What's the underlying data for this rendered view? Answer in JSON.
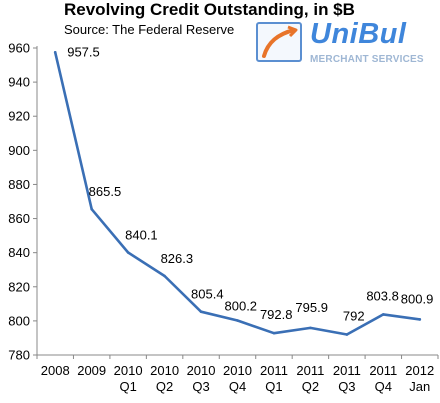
{
  "title": "Revolving Credit Outstanding, in $B",
  "subtitle": "Source: The Federal Reserve",
  "logo": {
    "name": "UniBul",
    "tagline": "MERCHANT SERVICES",
    "colors": {
      "primary": "#3f86db",
      "secondary": "#9fb7d4",
      "swoosh": "#e8742a"
    }
  },
  "chart_data": {
    "type": "line",
    "title": "Revolving Credit Outstanding, in $B",
    "subtitle": "Source: The Federal Reserve",
    "categories": [
      [
        "2008"
      ],
      [
        "2009"
      ],
      [
        "2010",
        "Q1"
      ],
      [
        "2010",
        "Q2"
      ],
      [
        "2010",
        "Q3"
      ],
      [
        "2010",
        "Q4"
      ],
      [
        "2011",
        "Q1"
      ],
      [
        "2011",
        "Q2"
      ],
      [
        "2011",
        "Q3"
      ],
      [
        "2011",
        "Q4"
      ],
      [
        "2012",
        "Jan"
      ]
    ],
    "series": [
      {
        "values": [
          957.5,
          865.5,
          840.1,
          826.3,
          805.4,
          800.2,
          792.8,
          795.9,
          792,
          803.8,
          800.9
        ],
        "labels": [
          "957.5",
          "865.5",
          "840.1",
          "826.3",
          "805.4",
          "800.2",
          "792.8",
          "795.9",
          "792",
          "803.8",
          "800.9"
        ],
        "color": "#3a6fb5"
      }
    ],
    "ylim": [
      780,
      960
    ],
    "yticks": [
      780,
      800,
      820,
      840,
      860,
      880,
      900,
      920,
      940,
      960
    ],
    "grid": false,
    "legend": "none"
  }
}
